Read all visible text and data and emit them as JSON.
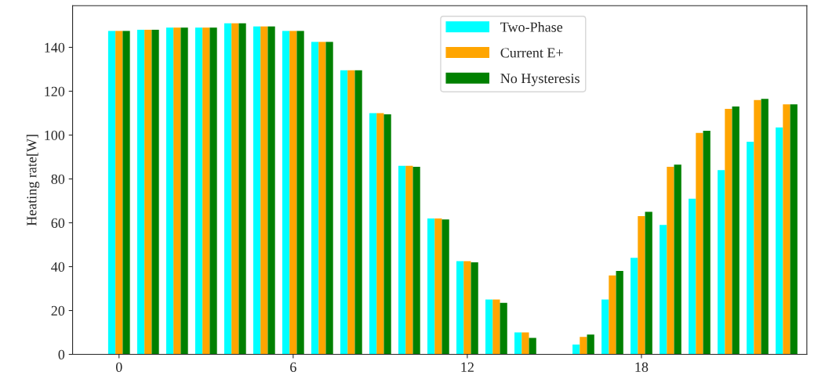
{
  "chart_data": {
    "type": "bar",
    "ylabel": "Heating rate[W]",
    "x": [
      0,
      1,
      2,
      3,
      4,
      5,
      6,
      7,
      8,
      9,
      10,
      11,
      12,
      13,
      14,
      15,
      16,
      17,
      18,
      19,
      20,
      21,
      22,
      23
    ],
    "series": [
      {
        "name": "Two-Phase",
        "color": "#00ffff",
        "values": [
          147.5,
          148,
          149,
          149,
          151,
          149.5,
          147.5,
          142.5,
          129.5,
          110,
          86,
          62,
          42.5,
          25,
          10,
          0,
          4.5,
          25,
          44,
          59,
          71,
          84,
          97,
          103.5
        ]
      },
      {
        "name": "Current E+",
        "color": "#ffa500",
        "values": [
          147.5,
          148,
          149,
          149,
          151,
          149.5,
          147.5,
          142.5,
          129.5,
          110,
          86,
          62,
          42.5,
          25,
          10,
          0,
          8,
          36,
          63,
          85.5,
          101,
          112,
          116,
          114
        ]
      },
      {
        "name": "No Hysteresis",
        "color": "#008000",
        "values": [
          147.5,
          148,
          149,
          149,
          151,
          149.5,
          147.5,
          142.5,
          129.5,
          109.5,
          85.5,
          61.5,
          42,
          23.5,
          7.5,
          0,
          9,
          38,
          65,
          86.5,
          102,
          113,
          116.5,
          114
        ]
      }
    ],
    "xlim": [
      -1.6,
      23.7
    ],
    "xticks": [
      0,
      6,
      12,
      18
    ],
    "ylim": [
      0,
      159
    ],
    "yticks": [
      0,
      20,
      40,
      60,
      80,
      100,
      120,
      140
    ],
    "grid": false,
    "legend": "top"
  }
}
